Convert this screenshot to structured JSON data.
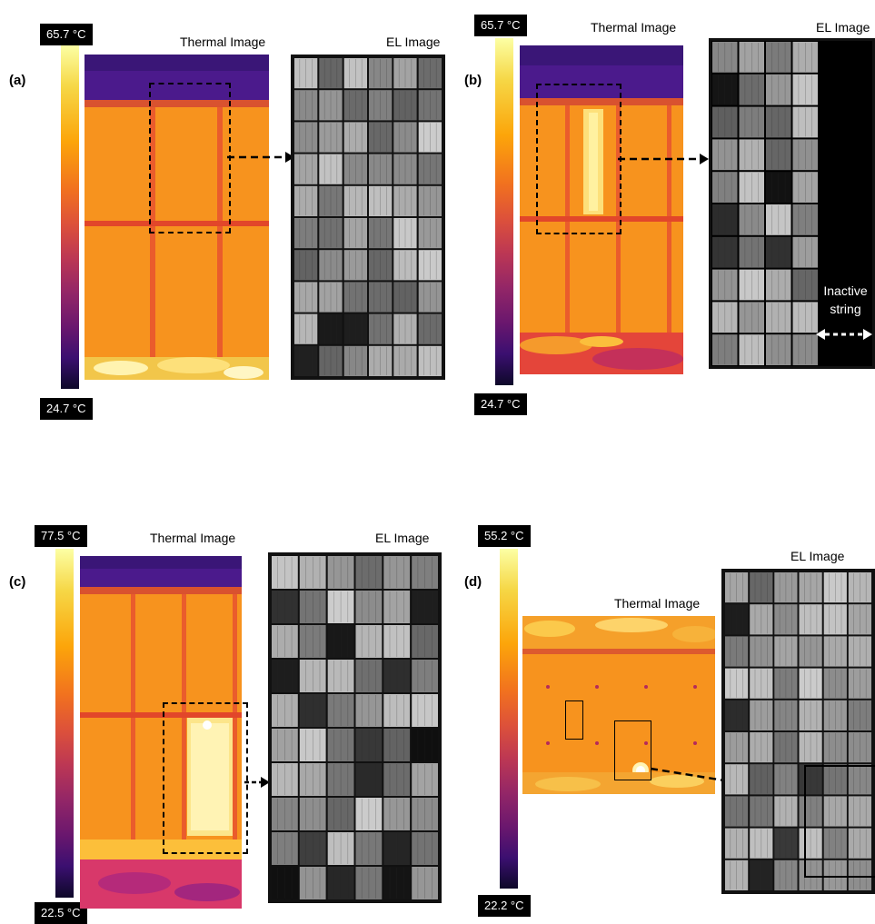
{
  "panels": [
    {
      "id": "a",
      "label": "(a)",
      "thermal_title": "Thermal Image",
      "el_title": "EL Image",
      "t_max": "65.7 °C",
      "t_min": "24.7 °C"
    },
    {
      "id": "b",
      "label": "(b)",
      "thermal_title": "Thermal Image",
      "el_title": "EL Image",
      "t_max": "65.7 °C",
      "t_min": "24.7 °C",
      "annotation": "Inactive string"
    },
    {
      "id": "c",
      "label": "(c)",
      "thermal_title": "Thermal Image",
      "el_title": "EL Image",
      "t_max": "77.5 °C",
      "t_min": "22.5 °C"
    },
    {
      "id": "d",
      "label": "(d)",
      "thermal_title": "Thermal Image",
      "el_title": "EL Image",
      "t_max": "55.2 °C",
      "t_min": "22.2 °C"
    }
  ],
  "colors": {
    "module_orange": "#f7931e",
    "sky_purple": "#4b1a8c",
    "hotspot": "#fff1a0",
    "ribbon_red": "#e2462a"
  }
}
